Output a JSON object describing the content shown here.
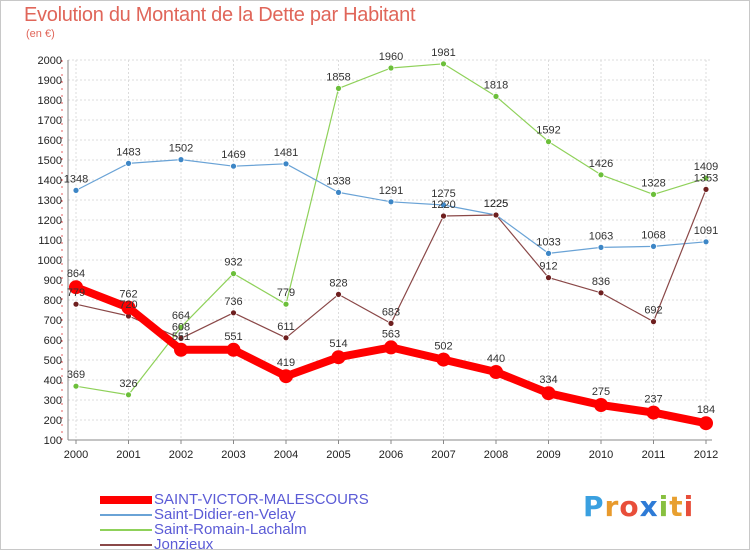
{
  "title": "Evolution du Montant de la Dette par Habitant",
  "subtitle": "(en €)",
  "logo": {
    "letters": [
      "P",
      "r",
      "o",
      "x",
      "i",
      "t",
      "i"
    ],
    "colors": [
      "#3aa0e0",
      "#e89a2c",
      "#e84e3a",
      "#2e7bd6",
      "#88c040",
      "#e8a030",
      "#e84e3a"
    ]
  },
  "chart_data": {
    "type": "line",
    "x": [
      "2000",
      "2001",
      "2002",
      "2003",
      "2004",
      "2005",
      "2006",
      "2007",
      "2008",
      "2009",
      "2010",
      "2011",
      "2012"
    ],
    "ylim": [
      100,
      2000
    ],
    "yticks": [
      100,
      200,
      300,
      400,
      500,
      600,
      700,
      800,
      900,
      1000,
      1100,
      1200,
      1300,
      1400,
      1500,
      1600,
      1700,
      1800,
      1900,
      2000
    ],
    "grid": true,
    "legend": "bottom",
    "series": [
      {
        "name": "Saint-Romain-Lachalm",
        "color": "#8fd15a",
        "point_color": "#6cbf3a",
        "width": 1.2,
        "point_size": 3,
        "values": [
          369,
          326,
          664,
          932,
          779,
          1858,
          1960,
          1981,
          1818,
          1592,
          1426,
          1328,
          1409
        ],
        "labels": [
          "369",
          "326",
          "664",
          "932",
          "779",
          "1858",
          "1960",
          "1981",
          "1818",
          "1592",
          "1426",
          "1328",
          "1409"
        ]
      },
      {
        "name": "Saint-Didier-en-Velay",
        "color": "#6aa3d6",
        "point_color": "#3d86c6",
        "width": 1.2,
        "point_size": 3,
        "values": [
          1348,
          1483,
          1502,
          1469,
          1481,
          1338,
          1291,
          1275,
          1225,
          1033,
          1063,
          1068,
          1091
        ],
        "labels": [
          "1348",
          "1483",
          "1502",
          "1469",
          "1481",
          "1338",
          "1291",
          "1275",
          "1225",
          "1033",
          "1063",
          "1068",
          "1091"
        ]
      },
      {
        "name": "Jonzieux",
        "color": "#8a4848",
        "point_color": "#6e1f1f",
        "width": 1.2,
        "point_size": 3,
        "values": [
          779,
          720,
          608,
          736,
          611,
          828,
          683,
          1220,
          1225,
          912,
          836,
          692,
          1353
        ],
        "labels": [
          "779",
          "720",
          "608",
          "736",
          "611",
          "828",
          "683",
          "1220",
          "1225",
          "912",
          "836",
          "692",
          "1353"
        ]
      },
      {
        "name": "SAINT-VICTOR-MALESCOURS",
        "color": "#ff0000",
        "point_color": "#ff0000",
        "width": 8,
        "point_size": 7,
        "values": [
          864,
          762,
          551,
          551,
          419,
          514,
          563,
          502,
          440,
          334,
          275,
          237,
          184
        ],
        "labels": [
          "864",
          "762",
          "551",
          "551",
          "419",
          "514",
          "563",
          "502",
          "440",
          "334",
          "275",
          "237",
          "184"
        ]
      }
    ],
    "legend_order": [
      "SAINT-VICTOR-MALESCOURS",
      "Saint-Didier-en-Velay",
      "Saint-Romain-Lachalm",
      "Jonzieux"
    ]
  }
}
